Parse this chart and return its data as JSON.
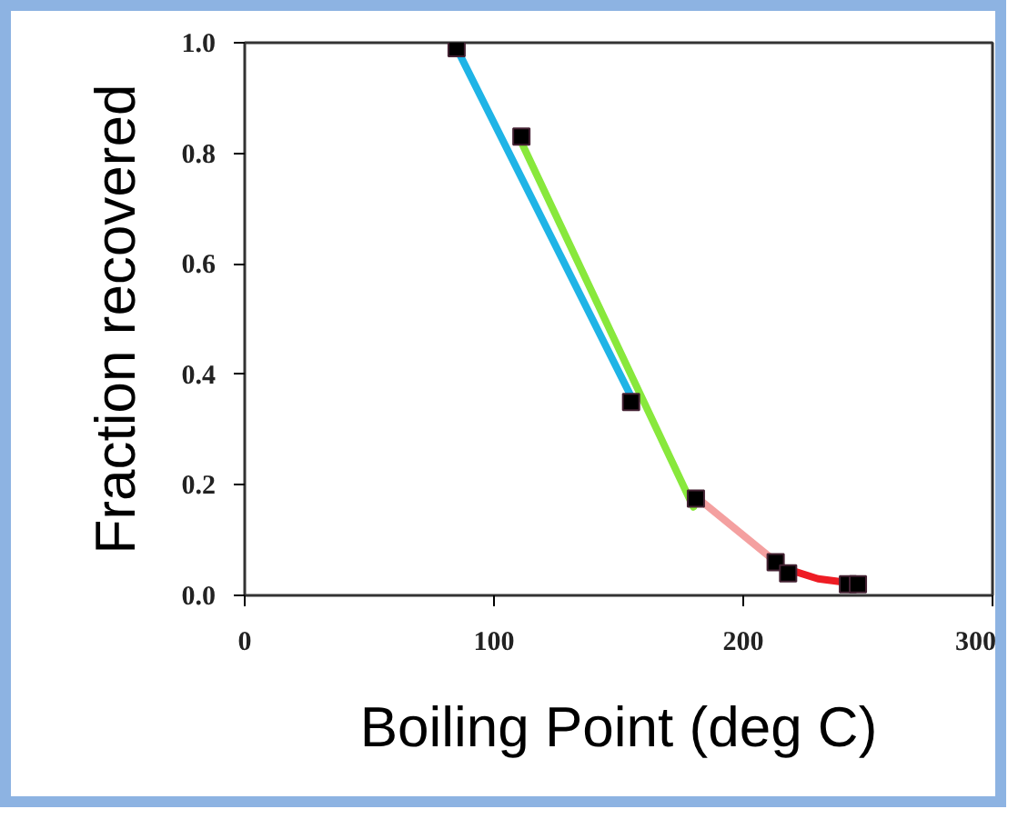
{
  "chart_data": {
    "type": "line",
    "xlabel": "Boiling Point (deg C)",
    "ylabel": "Fraction recovered",
    "xlim": [
      0,
      300
    ],
    "xticks": [
      0,
      100,
      200,
      300
    ],
    "ylim": [
      0,
      1.0
    ],
    "yticks": [
      {
        "value": 0,
        "label": "0.0"
      },
      {
        "value": 0.2,
        "label": "0.2"
      },
      {
        "value": 0.4,
        "label": "0.4"
      },
      {
        "value": 0.6,
        "label": "0.6"
      },
      {
        "value": 0.8,
        "label": "0.8"
      },
      {
        "value": 1.0,
        "label": "1.0"
      }
    ],
    "series": [
      {
        "color": "#1fb4e6",
        "marker": "none",
        "x": [
          85,
          155
        ],
        "values": [
          0.99,
          0.36
        ]
      },
      {
        "color": "#88e83c",
        "marker": "none",
        "x": [
          111,
          180
        ],
        "values": [
          0.82,
          0.16
        ]
      },
      {
        "color": "#f4a0a0",
        "marker": "none",
        "x": [
          182,
          216
        ],
        "values": [
          0.175,
          0.05
        ]
      },
      {
        "color": "#ee1c24",
        "marker": "none",
        "x": [
          216,
          230,
          247
        ],
        "values": [
          0.05,
          0.03,
          0.02
        ]
      },
      {
        "type": "scatter",
        "marker": "square",
        "color": "#000000",
        "x": [
          85,
          111,
          155,
          181,
          213,
          218,
          242,
          246
        ],
        "values": [
          0.99,
          0.83,
          0.35,
          0.175,
          0.06,
          0.04,
          0.02,
          0.02
        ]
      }
    ]
  }
}
